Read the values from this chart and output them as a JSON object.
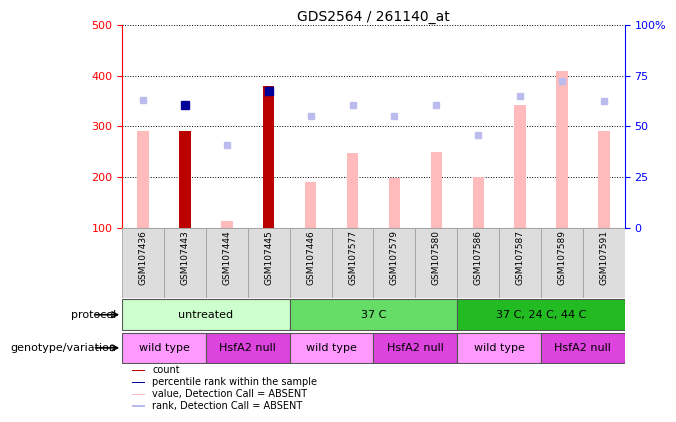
{
  "title": "GDS2564 / 261140_at",
  "samples": [
    "GSM107436",
    "GSM107443",
    "GSM107444",
    "GSM107445",
    "GSM107446",
    "GSM107577",
    "GSM107579",
    "GSM107580",
    "GSM107586",
    "GSM107587",
    "GSM107589",
    "GSM107591"
  ],
  "count_values": [
    null,
    290,
    null,
    380,
    null,
    null,
    null,
    null,
    null,
    null,
    null,
    null
  ],
  "percentile_rank": [
    null,
    342,
    null,
    370,
    null,
    null,
    null,
    null,
    null,
    null,
    null,
    null
  ],
  "value_absent": [
    290,
    null,
    113,
    null,
    190,
    248,
    198,
    250,
    200,
    343,
    410,
    290
  ],
  "rank_absent": [
    352,
    null,
    263,
    null,
    320,
    343,
    320,
    343,
    283,
    360,
    390,
    350
  ],
  "ylim_left": [
    100,
    500
  ],
  "ylim_right": [
    0,
    100
  ],
  "yticks_left": [
    100,
    200,
    300,
    400,
    500
  ],
  "yticks_right": [
    0,
    25,
    50,
    75,
    100
  ],
  "yticklabels_right": [
    "0",
    "25",
    "50",
    "75",
    "100%"
  ],
  "protocol_groups": [
    {
      "label": "untreated",
      "start": 0,
      "end": 3,
      "color": "#ccffcc"
    },
    {
      "label": "37 C",
      "start": 4,
      "end": 7,
      "color": "#66dd66"
    },
    {
      "label": "37 C, 24 C, 44 C",
      "start": 8,
      "end": 11,
      "color": "#22bb22"
    }
  ],
  "genotype_groups": [
    {
      "label": "wild type",
      "start": 0,
      "end": 1,
      "color": "#ff99ff"
    },
    {
      "label": "HsfA2 null",
      "start": 2,
      "end": 3,
      "color": "#dd44dd"
    },
    {
      "label": "wild type",
      "start": 4,
      "end": 5,
      "color": "#ff99ff"
    },
    {
      "label": "HsfA2 null",
      "start": 6,
      "end": 7,
      "color": "#dd44dd"
    },
    {
      "label": "wild type",
      "start": 8,
      "end": 9,
      "color": "#ff99ff"
    },
    {
      "label": "HsfA2 null",
      "start": 10,
      "end": 11,
      "color": "#dd44dd"
    }
  ],
  "color_count": "#bb0000",
  "color_percentile": "#000099",
  "color_value_absent": "#ffbbbb",
  "color_rank_absent": "#bbbbee",
  "color_sample_bg": "#dddddd",
  "bar_width": 0.45
}
